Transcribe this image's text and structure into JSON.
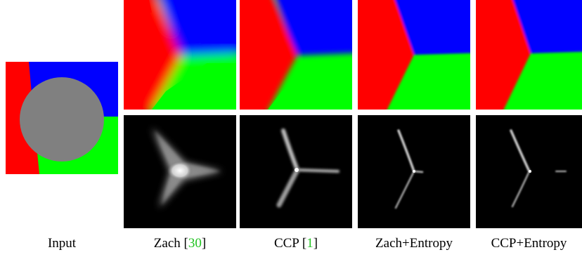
{
  "figure": {
    "captions": [
      {
        "label": "Input"
      },
      {
        "label": "Zach [",
        "cite": "30",
        "tail": "]"
      },
      {
        "label": "CCP [",
        "cite": "1",
        "tail": "]"
      },
      {
        "label": "Zach+Entropy"
      },
      {
        "label": "CCP+Entropy"
      }
    ],
    "colors": {
      "red": "#ff0000",
      "blue": "#0000ff",
      "green": "#00ff00",
      "gray": "#808080",
      "black": "#000000",
      "citation": "#22c322"
    }
  }
}
